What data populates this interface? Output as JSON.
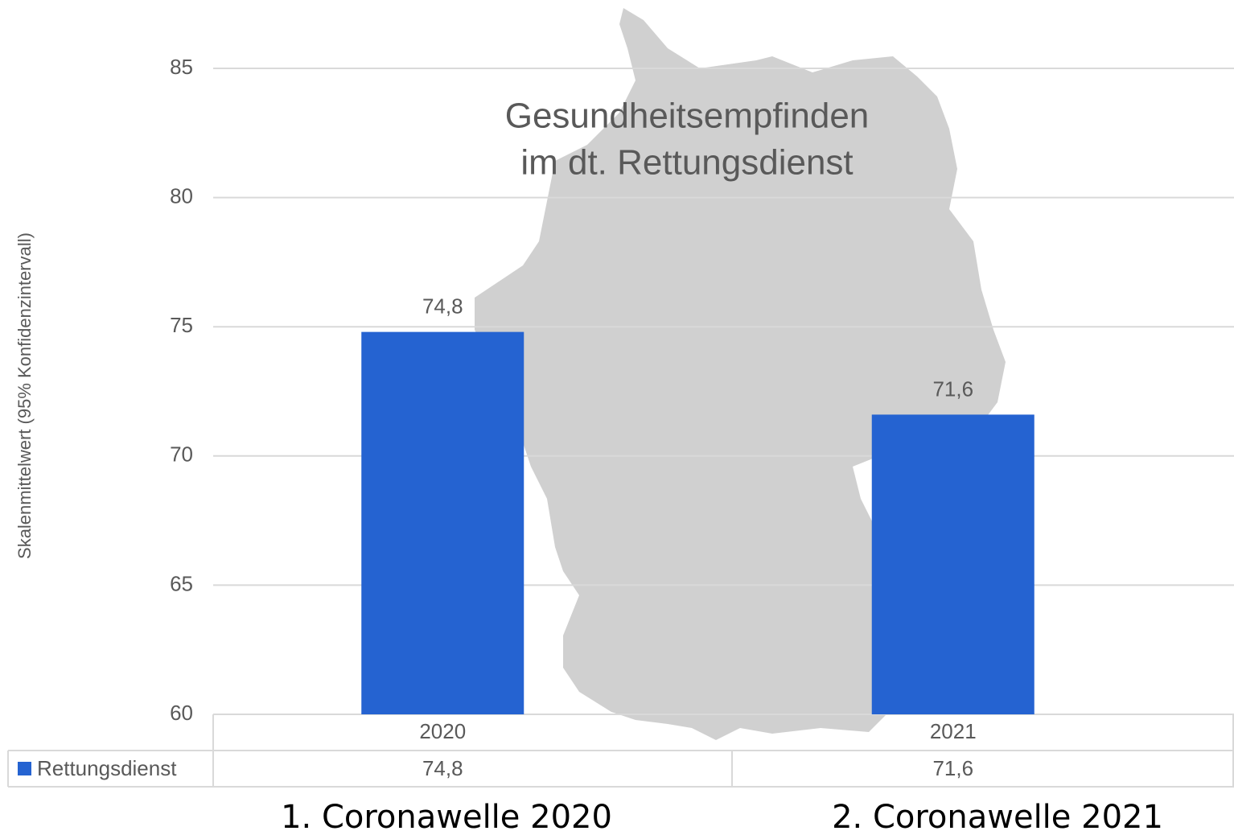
{
  "chart_data": {
    "type": "bar",
    "title": [
      "Gesundheitsempfinden",
      "im dt. Rettungsdienst"
    ],
    "y_label": "Skalenmittelwert (95% Konfidenzintervall)",
    "categories": [
      "2020",
      "2021"
    ],
    "series": [
      {
        "name": "Rettungsdienst",
        "color": "#2563d1",
        "values": [
          74.8,
          71.6
        ],
        "value_labels": [
          "74,8",
          "71,6"
        ]
      }
    ],
    "ylim": [
      60,
      85
    ],
    "yticks": [
      60,
      65,
      70,
      75,
      80,
      85
    ],
    "grid": true,
    "annotations": [
      "1. Coronawelle 2020",
      "2. Coronawelle 2021"
    ]
  }
}
